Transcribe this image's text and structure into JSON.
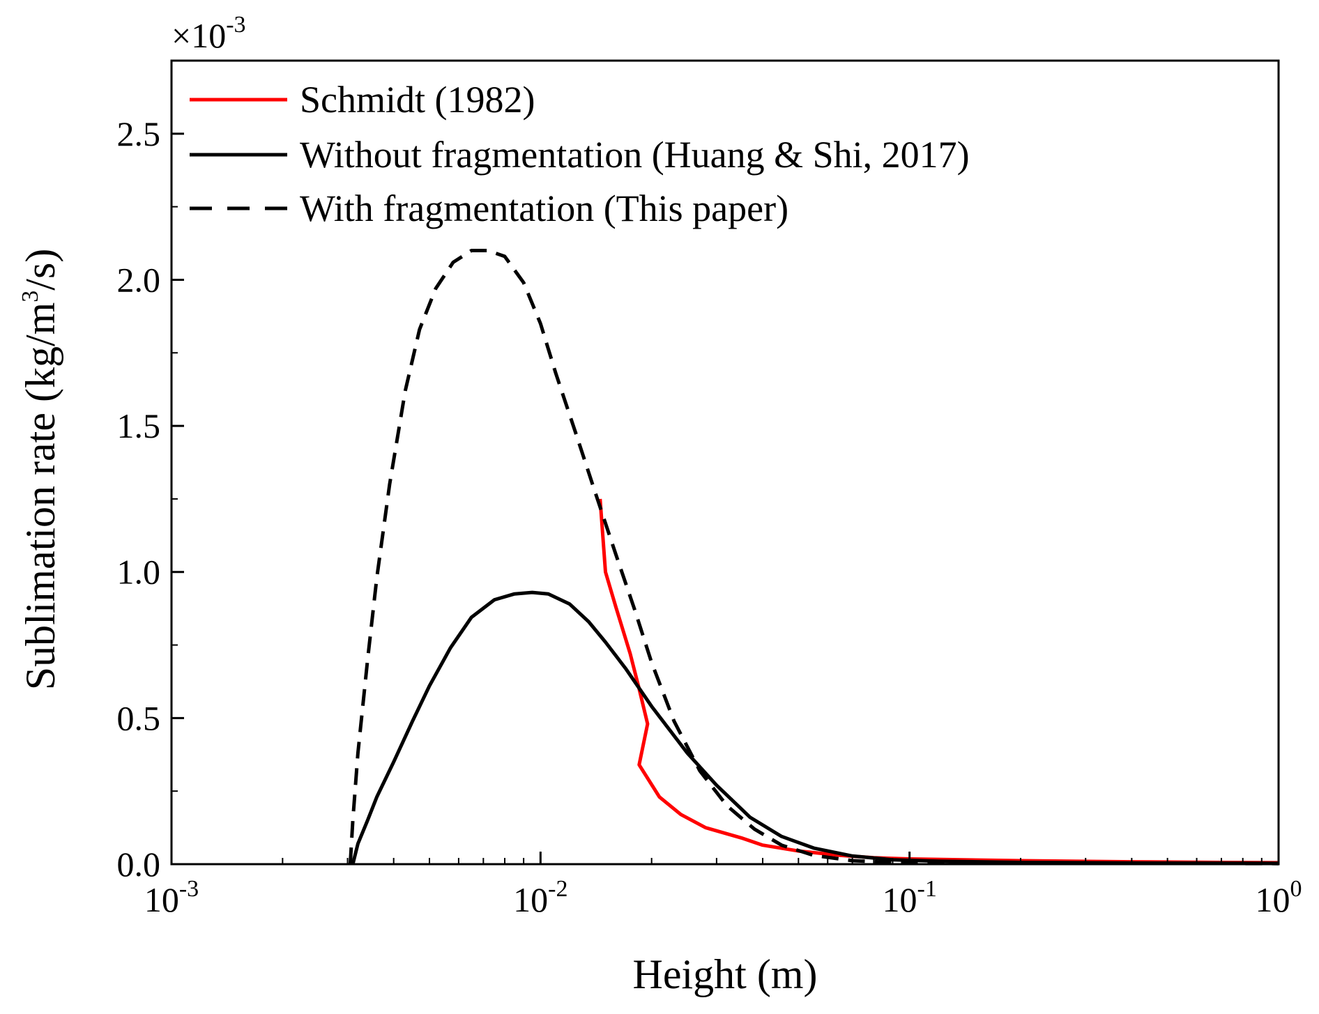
{
  "chart_data": {
    "type": "line",
    "xlabel": "Height (m)",
    "ylabel": {
      "prefix": "Sublimation rate (kg/m",
      "sup": "3",
      "suffix": "/s)"
    },
    "y_multiplier": {
      "base": "×10",
      "exp": "-3"
    },
    "x_scale": "log",
    "xlim": [
      0.001,
      1
    ],
    "ylim": [
      0,
      2.75
    ],
    "x_ticks": [
      {
        "value": 0.001,
        "base": "10",
        "exp": "-3"
      },
      {
        "value": 0.01,
        "base": "10",
        "exp": "-2"
      },
      {
        "value": 0.1,
        "base": "10",
        "exp": "-1"
      },
      {
        "value": 1,
        "base": "10",
        "exp": "0"
      }
    ],
    "y_ticks": [
      {
        "value": 0.0,
        "label": "0.0"
      },
      {
        "value": 0.5,
        "label": "0.5"
      },
      {
        "value": 1.0,
        "label": "1.0"
      },
      {
        "value": 1.5,
        "label": "1.5"
      },
      {
        "value": 2.0,
        "label": "2.0"
      },
      {
        "value": 2.5,
        "label": "2.5"
      }
    ],
    "grid": false,
    "legend_position": "top-left",
    "series": [
      {
        "name": "Schmidt (1982)",
        "color": "#ff0000",
        "dash": "solid",
        "points": [
          [
            0.0145,
            1.25
          ],
          [
            0.015,
            1.0
          ],
          [
            0.016,
            0.88
          ],
          [
            0.0175,
            0.72
          ],
          [
            0.0185,
            0.6
          ],
          [
            0.0195,
            0.48
          ],
          [
            0.0185,
            0.34
          ],
          [
            0.021,
            0.23
          ],
          [
            0.024,
            0.17
          ],
          [
            0.028,
            0.125
          ],
          [
            0.035,
            0.09
          ],
          [
            0.04,
            0.065
          ],
          [
            0.05,
            0.045
          ],
          [
            0.065,
            0.03
          ],
          [
            0.08,
            0.022
          ],
          [
            0.1,
            0.018
          ],
          [
            0.2,
            0.012
          ],
          [
            0.4,
            0.008
          ],
          [
            0.7,
            0.006
          ],
          [
            1.0,
            0.005
          ]
        ]
      },
      {
        "name": "Without fragmentation (Huang & Shi, 2017)",
        "color": "#000000",
        "dash": "solid",
        "points": [
          [
            0.0031,
            0.0
          ],
          [
            0.0032,
            0.07
          ],
          [
            0.0034,
            0.15
          ],
          [
            0.0036,
            0.23
          ],
          [
            0.004,
            0.35
          ],
          [
            0.0045,
            0.49
          ],
          [
            0.005,
            0.61
          ],
          [
            0.0057,
            0.74
          ],
          [
            0.0065,
            0.845
          ],
          [
            0.0075,
            0.905
          ],
          [
            0.0085,
            0.925
          ],
          [
            0.0095,
            0.93
          ],
          [
            0.0105,
            0.925
          ],
          [
            0.012,
            0.89
          ],
          [
            0.0135,
            0.83
          ],
          [
            0.015,
            0.76
          ],
          [
            0.017,
            0.67
          ],
          [
            0.02,
            0.54
          ],
          [
            0.025,
            0.38
          ],
          [
            0.03,
            0.27
          ],
          [
            0.037,
            0.16
          ],
          [
            0.045,
            0.095
          ],
          [
            0.055,
            0.055
          ],
          [
            0.07,
            0.028
          ],
          [
            0.09,
            0.015
          ],
          [
            0.12,
            0.01
          ],
          [
            0.2,
            0.006
          ],
          [
            0.4,
            0.004
          ],
          [
            1.0,
            0.003
          ]
        ]
      },
      {
        "name": "With fragmentation (This paper)",
        "color": "#000000",
        "dash": "dashed",
        "points": [
          [
            0.00305,
            0.0
          ],
          [
            0.0031,
            0.15
          ],
          [
            0.0032,
            0.38
          ],
          [
            0.0034,
            0.7
          ],
          [
            0.0036,
            0.98
          ],
          [
            0.0039,
            1.3
          ],
          [
            0.0043,
            1.62
          ],
          [
            0.0047,
            1.83
          ],
          [
            0.0052,
            1.97
          ],
          [
            0.0058,
            2.06
          ],
          [
            0.0065,
            2.1
          ],
          [
            0.0072,
            2.1
          ],
          [
            0.008,
            2.08
          ],
          [
            0.009,
            1.99
          ],
          [
            0.01,
            1.85
          ],
          [
            0.011,
            1.68
          ],
          [
            0.0125,
            1.47
          ],
          [
            0.014,
            1.28
          ],
          [
            0.016,
            1.06
          ],
          [
            0.018,
            0.87
          ],
          [
            0.02,
            0.69
          ],
          [
            0.023,
            0.49
          ],
          [
            0.027,
            0.32
          ],
          [
            0.032,
            0.2
          ],
          [
            0.038,
            0.12
          ],
          [
            0.045,
            0.065
          ],
          [
            0.055,
            0.03
          ],
          [
            0.07,
            0.012
          ],
          [
            0.09,
            0.006
          ],
          [
            0.15,
            0.004
          ],
          [
            0.4,
            0.003
          ],
          [
            1.0,
            0.002
          ]
        ]
      }
    ]
  }
}
